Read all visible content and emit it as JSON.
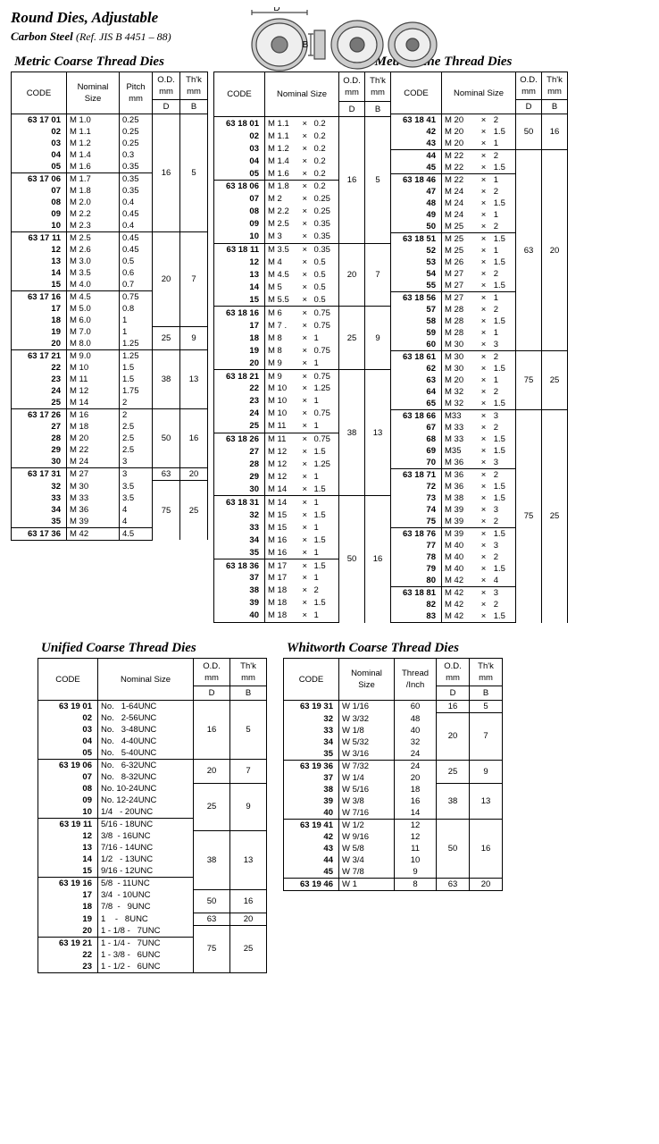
{
  "header": {
    "title": "Round Dies, Adjustable",
    "subtitle": "Carbon Steel",
    "ref": "(Ref. JIS B 4451 – 88)",
    "dim_D": "D",
    "dim_B": "B"
  },
  "labels": {
    "code": "CODE",
    "nom_size": "Nominal Size",
    "pitch": "Pitch mm",
    "od": "O.D. mm",
    "thk": "Th'k mm",
    "D": "D",
    "B": "B",
    "thread_inch": "Thread /Inch"
  },
  "sections": {
    "coarse": "Metric Coarse Thread Dies",
    "fine": "Metric Fine Thread Dies",
    "unified": "Unified Coarse Thread Dies",
    "whitworth": "Whitworth Coarse Thread Dies"
  },
  "coarse": {
    "rows": [
      {
        "code": "63 17 01",
        "size": "M 1.0",
        "pitch": "0.25",
        "D": "16",
        "B": "5",
        "top": true,
        "Dspan": 10,
        "Bspan": 10
      },
      {
        "code": "02",
        "size": "M 1.1",
        "pitch": "0.25"
      },
      {
        "code": "03",
        "size": "M 1.2",
        "pitch": "0.25"
      },
      {
        "code": "04",
        "size": "M 1.4",
        "pitch": "0.3"
      },
      {
        "code": "05",
        "size": "M 1.6",
        "pitch": "0.35"
      },
      {
        "code": "63 17 06",
        "size": "M 1.7",
        "pitch": "0.35",
        "top": true
      },
      {
        "code": "07",
        "size": "M 1.8",
        "pitch": "0.35"
      },
      {
        "code": "08",
        "size": "M 2.0",
        "pitch": "0.4"
      },
      {
        "code": "09",
        "size": "M 2.2",
        "pitch": "0.45"
      },
      {
        "code": "10",
        "size": "M 2.3",
        "pitch": "0.4"
      },
      {
        "code": "63 17 11",
        "size": "M 2.5",
        "pitch": "0.45",
        "top": true,
        "D": "20",
        "B": "7",
        "Dspan": 8,
        "Bspan": 8,
        "Dtop": true
      },
      {
        "code": "12",
        "size": "M 2.6",
        "pitch": "0.45"
      },
      {
        "code": "13",
        "size": "M 3.0",
        "pitch": "0.5"
      },
      {
        "code": "14",
        "size": "M 3.5",
        "pitch": "0.6"
      },
      {
        "code": "15",
        "size": "M 4.0",
        "pitch": "0.7"
      },
      {
        "code": "63 17 16",
        "size": "M 4.5",
        "pitch": "0.75",
        "top": true
      },
      {
        "code": "17",
        "size": "M 5.0",
        "pitch": "0.8"
      },
      {
        "code": "18",
        "size": "M 6.0",
        "pitch": "1"
      },
      {
        "code": "19",
        "size": "M 7.0",
        "pitch": "1",
        "D": "25",
        "B": "9",
        "Dspan": 2,
        "Bspan": 2,
        "Dtop": true
      },
      {
        "code": "20",
        "size": "M 8.0",
        "pitch": "1.25"
      },
      {
        "code": "63 17 21",
        "size": "M 9.0",
        "pitch": "1.25",
        "top": true,
        "D": "38",
        "B": "13",
        "Dspan": 5,
        "Bspan": 5,
        "Dtop": true
      },
      {
        "code": "22",
        "size": "M 10",
        "pitch": "1.5"
      },
      {
        "code": "23",
        "size": "M 11",
        "pitch": "1.5"
      },
      {
        "code": "24",
        "size": "M 12",
        "pitch": "1.75"
      },
      {
        "code": "25",
        "size": "M 14",
        "pitch": "2"
      },
      {
        "code": "63 17 26",
        "size": "M 16",
        "pitch": "2",
        "top": true,
        "D": "50",
        "B": "16",
        "Dspan": 5,
        "Bspan": 5,
        "Dtop": true
      },
      {
        "code": "27",
        "size": "M 18",
        "pitch": "2.5"
      },
      {
        "code": "28",
        "size": "M 20",
        "pitch": "2.5"
      },
      {
        "code": "29",
        "size": "M 22",
        "pitch": "2.5"
      },
      {
        "code": "30",
        "size": "M 24",
        "pitch": "3"
      },
      {
        "code": "63 17 31",
        "size": "M 27",
        "pitch": "3",
        "top": true,
        "D": "63",
        "B": "20",
        "Dspan": 1,
        "Bspan": 1,
        "Dtop": true
      },
      {
        "code": "32",
        "size": "M 30",
        "pitch": "3.5",
        "D": "75",
        "B": "25",
        "Dspan": 5,
        "Bspan": 5,
        "Dtop": true
      },
      {
        "code": "33",
        "size": "M 33",
        "pitch": "3.5"
      },
      {
        "code": "34",
        "size": "M 36",
        "pitch": "4"
      },
      {
        "code": "35",
        "size": "M 39",
        "pitch": "4"
      },
      {
        "code": "63 17 36",
        "size": "M 42",
        "pitch": "4.5",
        "top": true,
        "bb": true
      }
    ]
  },
  "fine1": {
    "rows": [
      {
        "code": "63 18 01",
        "s1": "M 1.1",
        "s2": "0.2",
        "D": "16",
        "B": "5",
        "Dspan": 10,
        "Bspan": 10,
        "top": true
      },
      {
        "code": "02",
        "s1": "M 1.1",
        "s2": "0.2"
      },
      {
        "code": "03",
        "s1": "M 1.2",
        "s2": "0.2"
      },
      {
        "code": "04",
        "s1": "M 1.4",
        "s2": "0.2"
      },
      {
        "code": "05",
        "s1": "M 1.6",
        "s2": "0.2"
      },
      {
        "code": "63 18 06",
        "s1": "M 1.8",
        "s2": "0.2",
        "top": true
      },
      {
        "code": "07",
        "s1": "M 2",
        "s2": "0.25"
      },
      {
        "code": "08",
        "s1": "M 2.2",
        "s2": "0.25"
      },
      {
        "code": "09",
        "s1": "M 2.5",
        "s2": "0.35"
      },
      {
        "code": "10",
        "s1": "M 3",
        "s2": "0.35"
      },
      {
        "code": "63 18 11",
        "s1": "M 3.5",
        "s2": "0.35",
        "top": true,
        "D": "20",
        "B": "7",
        "Dspan": 5,
        "Bspan": 5,
        "Dtop": true
      },
      {
        "code": "12",
        "s1": "M 4",
        "s2": "0.5"
      },
      {
        "code": "13",
        "s1": "M 4.5",
        "s2": "0.5"
      },
      {
        "code": "14",
        "s1": "M 5",
        "s2": "0.5"
      },
      {
        "code": "15",
        "s1": "M 5.5",
        "s2": "0.5"
      },
      {
        "code": "63 18 16",
        "s1": "M 6",
        "s2": "0.75",
        "top": true,
        "D": "25",
        "B": "9",
        "Dspan": 5,
        "Bspan": 5,
        "Dtop": true
      },
      {
        "code": "17",
        "s1": "M 7 .",
        "s2": "0.75"
      },
      {
        "code": "18",
        "s1": "M 8",
        "s2": "1"
      },
      {
        "code": "19",
        "s1": "M 8",
        "s2": "0.75"
      },
      {
        "code": "20",
        "s1": "M 9",
        "s2": "1"
      },
      {
        "code": "63 18 21",
        "s1": "M 9",
        "s2": "0.75",
        "top": true,
        "D": "38",
        "B": "13",
        "Dspan": 10,
        "Bspan": 10,
        "Dtop": true
      },
      {
        "code": "22",
        "s1": "M 10",
        "s2": "1.25"
      },
      {
        "code": "23",
        "s1": "M 10",
        "s2": "1"
      },
      {
        "code": "24",
        "s1": "M 10",
        "s2": "0.75"
      },
      {
        "code": "25",
        "s1": "M 11",
        "s2": "1"
      },
      {
        "code": "63 18 26",
        "s1": "M 11",
        "s2": "0.75",
        "top": true
      },
      {
        "code": "27",
        "s1": "M 12",
        "s2": "1.5"
      },
      {
        "code": "28",
        "s1": "M 12",
        "s2": "1.25"
      },
      {
        "code": "29",
        "s1": "M 12",
        "s2": "1"
      },
      {
        "code": "30",
        "s1": "M 14",
        "s2": "1.5"
      },
      {
        "code": "63 18 31",
        "s1": "M 14",
        "s2": "1",
        "top": true,
        "D": "50",
        "B": "16",
        "Dspan": 10,
        "Bspan": 10,
        "Dtop": true
      },
      {
        "code": "32",
        "s1": "M 15",
        "s2": "1.5"
      },
      {
        "code": "33",
        "s1": "M 15",
        "s2": "1"
      },
      {
        "code": "34",
        "s1": "M 16",
        "s2": "1.5"
      },
      {
        "code": "35",
        "s1": "M 16",
        "s2": "1"
      },
      {
        "code": "63 18 36",
        "s1": "M 17",
        "s2": "1.5",
        "top": true
      },
      {
        "code": "37",
        "s1": "M 17",
        "s2": "1"
      },
      {
        "code": "38",
        "s1": "M 18",
        "s2": "2"
      },
      {
        "code": "39",
        "s1": "M 18",
        "s2": "1.5"
      },
      {
        "code": "40",
        "s1": "M 18",
        "s2": "1",
        "bb": true
      }
    ]
  },
  "fine2": {
    "rows": [
      {
        "code": "63 18 41",
        "s1": "M 20",
        "s2": "2",
        "D": "50",
        "B": "16",
        "Dspan": 3,
        "Bspan": 3,
        "top": true
      },
      {
        "code": "42",
        "s1": "M 20",
        "s2": "1.5"
      },
      {
        "code": "43",
        "s1": "M 20",
        "s2": "1",
        "bb": true
      },
      {
        "code": "44",
        "s1": "M 22",
        "s2": "2",
        "D": "63",
        "B": "20",
        "Dspan": 17,
        "Bspan": 17,
        "Dtop": true
      },
      {
        "code": "45",
        "s1": "M 22",
        "s2": "1.5"
      },
      {
        "code": "63 18 46",
        "s1": "M 22",
        "s2": "1",
        "top": true
      },
      {
        "code": "47",
        "s1": "M 24",
        "s2": "2"
      },
      {
        "code": "48",
        "s1": "M 24",
        "s2": "1.5"
      },
      {
        "code": "49",
        "s1": "M 24",
        "s2": "1"
      },
      {
        "code": "50",
        "s1": "M 25",
        "s2": "2"
      },
      {
        "code": "63 18 51",
        "s1": "M 25",
        "s2": "1.5",
        "top": true
      },
      {
        "code": "52",
        "s1": "M 25",
        "s2": "1"
      },
      {
        "code": "53",
        "s1": "M 26",
        "s2": "1.5"
      },
      {
        "code": "54",
        "s1": "M 27",
        "s2": "2"
      },
      {
        "code": "55",
        "s1": "M 27",
        "s2": "1.5"
      },
      {
        "code": "63 18 56",
        "s1": "M 27",
        "s2": "1",
        "top": true
      },
      {
        "code": "57",
        "s1": "M 28",
        "s2": "2"
      },
      {
        "code": "58",
        "s1": "M 28",
        "s2": "1.5"
      },
      {
        "code": "59",
        "s1": "M 28",
        "s2": "1"
      },
      {
        "code": "60",
        "s1": "M 30",
        "s2": "3"
      },
      {
        "code": "63 18 61",
        "s1": "M 30",
        "s2": "2",
        "top": true,
        "D": "75",
        "B": "25",
        "Dspan": 5,
        "Bspan": 5,
        "Dtop": true
      },
      {
        "code": "62",
        "s1": "M 30",
        "s2": "1.5"
      },
      {
        "code": "63",
        "s1": "M 20",
        "s2": "1"
      },
      {
        "code": "64",
        "s1": "M 32",
        "s2": "2"
      },
      {
        "code": "65",
        "s1": "M 32",
        "s2": "1.5"
      },
      {
        "code": "63 18 66",
        "s1": "M33",
        "s2": "3",
        "top": true,
        "D": "75",
        "B": "25",
        "Dspan": 18,
        "Bspan": 18,
        "Dtop": true
      },
      {
        "code": "67",
        "s1": "M 33",
        "s2": "2"
      },
      {
        "code": "68",
        "s1": "M 33",
        "s2": "1.5"
      },
      {
        "code": "69",
        "s1": "M35",
        "s2": "1.5"
      },
      {
        "code": "70",
        "s1": "M 36",
        "s2": "3"
      },
      {
        "code": "63 18 71",
        "s1": "M 36",
        "s2": "2",
        "top": true
      },
      {
        "code": "72",
        "s1": "M 36",
        "s2": "1.5"
      },
      {
        "code": "73",
        "s1": "M 38",
        "s2": "1.5"
      },
      {
        "code": "74",
        "s1": "M 39",
        "s2": "3"
      },
      {
        "code": "75",
        "s1": "M 39",
        "s2": "2"
      },
      {
        "code": "63 18 76",
        "s1": "M 39",
        "s2": "1.5",
        "top": true
      },
      {
        "code": "77",
        "s1": "M 40",
        "s2": "3"
      },
      {
        "code": "78",
        "s1": "M 40",
        "s2": "2"
      },
      {
        "code": "79",
        "s1": "M 40",
        "s2": "1.5"
      },
      {
        "code": "80",
        "s1": "M 42",
        "s2": "4"
      },
      {
        "code": "63 18 81",
        "s1": "M 42",
        "s2": "3",
        "top": true
      },
      {
        "code": "82",
        "s1": "M 42",
        "s2": "2"
      },
      {
        "code": "83",
        "s1": "M 42",
        "s2": "1.5",
        "bb": true
      }
    ]
  },
  "unified": {
    "rows": [
      {
        "code": "63 19 01",
        "size": "No.   1-64UNC",
        "D": "16",
        "B": "5",
        "Dspan": 5,
        "Bspan": 5,
        "top": true
      },
      {
        "code": "02",
        "size": "No.   2-56UNC"
      },
      {
        "code": "03",
        "size": "No.   3-48UNC"
      },
      {
        "code": "04",
        "size": "No.   4-40UNC"
      },
      {
        "code": "05",
        "size": "No.   5-40UNC",
        "bb": true
      },
      {
        "code": "63 19 06",
        "size": "No.   6-32UNC",
        "D": "20",
        "B": "7",
        "Dspan": 2,
        "Bspan": 2,
        "top": true,
        "Dtop": true
      },
      {
        "code": "07",
        "size": "No.   8-32UNC"
      },
      {
        "code": "08",
        "size": "No. 10-24UNC",
        "D": "25",
        "B": "9",
        "Dspan": 4,
        "Bspan": 4,
        "Dtop": true
      },
      {
        "code": "09",
        "size": "No. 12-24UNC"
      },
      {
        "code": "10",
        "size": "1/4   - 20UNC",
        "bb": true
      },
      {
        "code": "63 19 11",
        "size": "5/16 - 18UNC",
        "top": true
      },
      {
        "code": "12",
        "size": "3/8  - 16UNC",
        "D": "38",
        "B": "13",
        "Dspan": 5,
        "Bspan": 5,
        "Dtop": true
      },
      {
        "code": "13",
        "size": "7/16 - 14UNC"
      },
      {
        "code": "14",
        "size": "1/2   - 13UNC"
      },
      {
        "code": "15",
        "size": "9/16 - 12UNC",
        "bb": true
      },
      {
        "code": "63 19 16",
        "size": "5/8  - 11UNC",
        "top": true
      },
      {
        "code": "17",
        "size": "3/4  - 10UNC",
        "D": "50",
        "B": "16",
        "Dspan": 2,
        "Bspan": 2,
        "Dtop": true
      },
      {
        "code": "18",
        "size": "7/8  -   9UNC"
      },
      {
        "code": "19",
        "size": "1    -   8UNC",
        "D": "63",
        "B": "20",
        "Dspan": 1,
        "Bspan": 1,
        "Dtop": true
      },
      {
        "code": "20",
        "size": "1 - 1/8 -   7UNC",
        "bb": true,
        "D": "75",
        "B": "25",
        "Dspan": 4,
        "Bspan": 4,
        "Dtop": true
      },
      {
        "code": "63 19 21",
        "size": "1 - 1/4 -   7UNC",
        "top": true
      },
      {
        "code": "22",
        "size": "1 - 3/8 -   6UNC"
      },
      {
        "code": "23",
        "size": "1 - 1/2 -   6UNC",
        "bb": true
      }
    ]
  },
  "whitworth": {
    "rows": [
      {
        "code": "63 19 31",
        "size": "W 1/16",
        "ti": "60",
        "D": "16",
        "B": "5",
        "Dspan": 1,
        "Bspan": 1,
        "top": true
      },
      {
        "code": "32",
        "size": "W 3/32",
        "ti": "48",
        "D": "20",
        "B": "7",
        "Dspan": 4,
        "Bspan": 4,
        "Dtop": true
      },
      {
        "code": "33",
        "size": "W 1/8",
        "ti": "40"
      },
      {
        "code": "34",
        "size": "W 5/32",
        "ti": "32"
      },
      {
        "code": "35",
        "size": "W 3/16",
        "ti": "24",
        "bb": true
      },
      {
        "code": "63 19 36",
        "size": "W 7/32",
        "ti": "24",
        "top": true,
        "D": "25",
        "B": "9",
        "Dspan": 2,
        "Bspan": 2,
        "Dtop": true
      },
      {
        "code": "37",
        "size": "W 1/4",
        "ti": "20"
      },
      {
        "code": "38",
        "size": "W 5/16",
        "ti": "18",
        "D": "38",
        "B": "13",
        "Dspan": 3,
        "Bspan": 3,
        "Dtop": true
      },
      {
        "code": "39",
        "size": "W 3/8",
        "ti": "16"
      },
      {
        "code": "40",
        "size": "W 7/16",
        "ti": "14",
        "bb": true
      },
      {
        "code": "63 19 41",
        "size": "W 1/2",
        "ti": "12",
        "top": true,
        "D": "50",
        "B": "16",
        "Dspan": 5,
        "Bspan": 5,
        "Dtop": true
      },
      {
        "code": "42",
        "size": "W 9/16",
        "ti": "12"
      },
      {
        "code": "43",
        "size": "W 5/8",
        "ti": "11"
      },
      {
        "code": "44",
        "size": "W 3/4",
        "ti": "10"
      },
      {
        "code": "45",
        "size": "W 7/8",
        "ti": "9",
        "bb": true
      },
      {
        "code": "63 19 46",
        "size": "W    1",
        "ti": "8",
        "top": true,
        "D": "63",
        "B": "20",
        "Dspan": 1,
        "Bspan": 1,
        "Dtop": true,
        "bb": true
      }
    ]
  }
}
